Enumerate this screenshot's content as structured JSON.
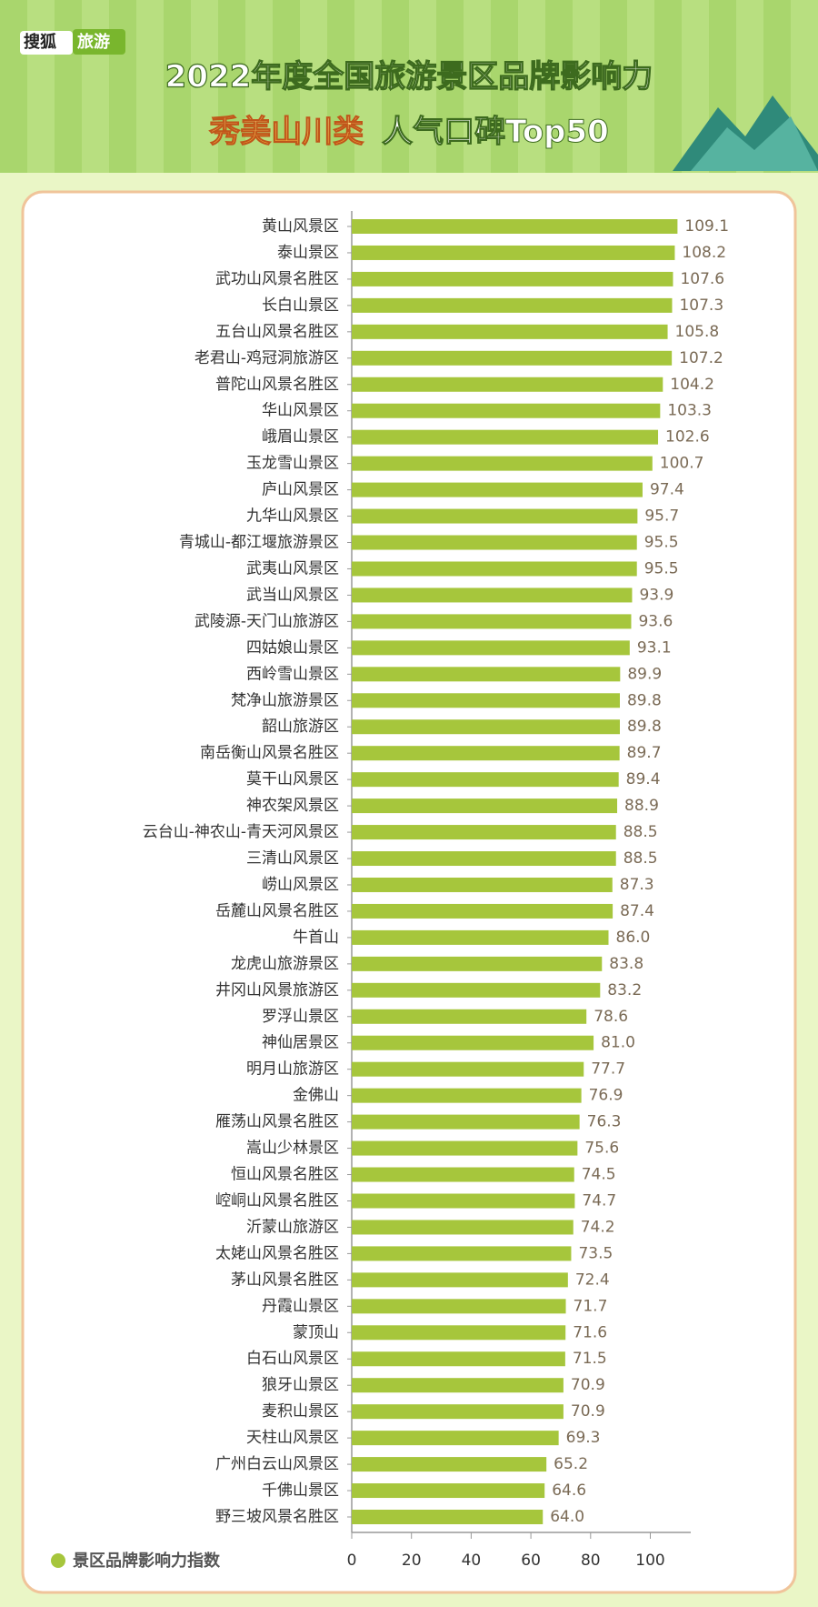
{
  "chart_data": {
    "type": "bar",
    "orientation": "horizontal",
    "logo": [
      "搜狐",
      "旅游"
    ],
    "title": "2022年度全国旅游景区品牌影响力",
    "subtitle_highlight": "秀美山川类",
    "subtitle": "人气口碑Top50",
    "categories": [
      "黄山风景区",
      "泰山景区",
      "武功山风景名胜区",
      "长白山景区",
      "五台山风景名胜区",
      "老君山-鸡冠洞旅游区",
      "普陀山风景名胜区",
      "华山风景区",
      "峨眉山景区",
      "玉龙雪山景区",
      "庐山风景区",
      "九华山风景区",
      "青城山-都江堰旅游景区",
      "武夷山风景区",
      "武当山风景区",
      "武陵源-天门山旅游区",
      "四姑娘山景区",
      "西岭雪山景区",
      "梵净山旅游景区",
      "韶山旅游区",
      "南岳衡山风景名胜区",
      "莫干山风景区",
      "神农架风景区",
      "云台山-神农山-青天河风景区",
      "三清山风景区",
      "崂山风景区",
      "岳麓山风景名胜区",
      "牛首山",
      "龙虎山旅游景区",
      "井冈山风景旅游区",
      "罗浮山景区",
      "神仙居景区",
      "明月山旅游区",
      "金佛山",
      "雁荡山风景名胜区",
      "嵩山少林景区",
      "恒山风景名胜区",
      "崆峒山风景名胜区",
      "沂蒙山旅游区",
      "太姥山风景名胜区",
      "茅山风景名胜区",
      "丹霞山景区",
      "蒙顶山",
      "白石山风景区",
      "狼牙山景区",
      "麦积山景区",
      "天柱山风景区",
      "广州白云山风景区",
      "千佛山景区",
      "野三坡风景名胜区"
    ],
    "series": [
      {
        "name": "景区品牌影响力指数",
        "color": "#a6c63c",
        "values": [
          109.1,
          108.2,
          107.6,
          107.3,
          105.8,
          107.2,
          104.2,
          103.3,
          102.6,
          100.7,
          97.4,
          95.7,
          95.5,
          95.5,
          93.9,
          93.6,
          93.1,
          89.9,
          89.8,
          89.8,
          89.7,
          89.4,
          88.9,
          88.5,
          88.5,
          87.3,
          87.4,
          86.0,
          83.8,
          83.2,
          78.6,
          81.0,
          77.7,
          76.9,
          76.3,
          75.6,
          74.5,
          74.7,
          74.2,
          73.5,
          72.4,
          71.7,
          71.6,
          71.5,
          70.9,
          70.9,
          69.3,
          65.2,
          64.6,
          64.0
        ],
        "value_labels": [
          "109.1",
          "108.2",
          "107.6",
          "107.3",
          "105.8",
          "107.2",
          "104.2",
          "103.3",
          "102.6",
          "100.7",
          "97.4",
          "95.7",
          "95.5",
          "95.5",
          "93.9",
          "93.6",
          "93.1",
          "89.9",
          "89.8",
          "89.8",
          "89.7",
          "89.4",
          "88.9",
          "88.5",
          "88.5",
          "87.3",
          "87.4",
          "86.0",
          "83.8",
          "83.2",
          "78.6",
          "81.0",
          "77.7",
          "76.9",
          "76.3",
          "75.6",
          "74.5",
          "74.7",
          "74.2",
          "73.5",
          "72.4",
          "71.7",
          "71.6",
          "71.5",
          "70.9",
          "70.9",
          "69.3",
          "65.2",
          "64.6",
          "64.0"
        ]
      }
    ],
    "xlim": [
      0,
      110
    ],
    "xticks": [
      0,
      20,
      40,
      60,
      80,
      100
    ]
  }
}
